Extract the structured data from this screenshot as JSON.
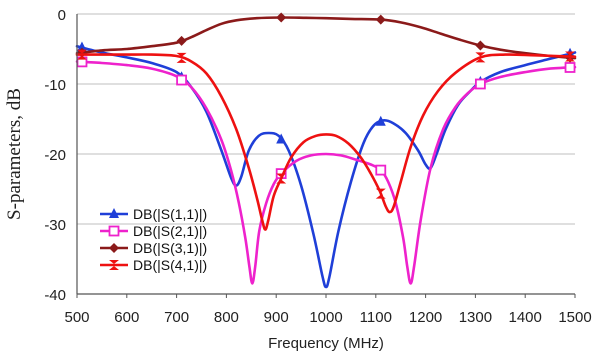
{
  "chart_data": {
    "type": "line",
    "title": "",
    "xlabel": "Frequency (MHz)",
    "ylabel": "S-parameters, dB",
    "xlim": [
      500,
      1500
    ],
    "ylim": [
      -40,
      0
    ],
    "x_ticks": [
      500,
      600,
      700,
      800,
      900,
      1000,
      1100,
      1200,
      1300,
      1400,
      1500
    ],
    "y_ticks": [
      0,
      -10,
      -20,
      -30,
      -40
    ],
    "grid": "horizontal",
    "legend_position": "bottom-left",
    "series": [
      {
        "name": "DB(|S(1,1)|)",
        "color": "#1f3fd8",
        "marker": "triangle",
        "marker_x": [
          510,
          710,
          910,
          1110,
          1310,
          1490
        ],
        "points": [
          [
            500,
            -4.6
          ],
          [
            550,
            -5.5
          ],
          [
            600,
            -6.2
          ],
          [
            650,
            -7.0
          ],
          [
            700,
            -8.3
          ],
          [
            730,
            -10.5
          ],
          [
            760,
            -14.0
          ],
          [
            790,
            -19.5
          ],
          [
            810,
            -23.5
          ],
          [
            820,
            -24.5
          ],
          [
            830,
            -23.2
          ],
          [
            845,
            -19.5
          ],
          [
            865,
            -17.4
          ],
          [
            885,
            -17.0
          ],
          [
            905,
            -17.4
          ],
          [
            925,
            -19.5
          ],
          [
            950,
            -24.5
          ],
          [
            975,
            -31.5
          ],
          [
            993,
            -37.5
          ],
          [
            1000,
            -39.0
          ],
          [
            1007,
            -37.5
          ],
          [
            1025,
            -31.0
          ],
          [
            1050,
            -24.0
          ],
          [
            1075,
            -18.5
          ],
          [
            1095,
            -16.0
          ],
          [
            1115,
            -15.2
          ],
          [
            1135,
            -15.6
          ],
          [
            1160,
            -17.0
          ],
          [
            1185,
            -19.5
          ],
          [
            1200,
            -21.5
          ],
          [
            1210,
            -22.0
          ],
          [
            1222,
            -20.0
          ],
          [
            1240,
            -16.5
          ],
          [
            1265,
            -13.0
          ],
          [
            1290,
            -11.0
          ],
          [
            1310,
            -9.7
          ],
          [
            1350,
            -8.3
          ],
          [
            1400,
            -7.3
          ],
          [
            1450,
            -6.4
          ],
          [
            1500,
            -5.5
          ]
        ]
      },
      {
        "name": "DB(|S(2,1)|)",
        "color": "#ee22cc",
        "marker": "square-open",
        "marker_x": [
          510,
          710,
          910,
          1110,
          1310,
          1490
        ],
        "points": [
          [
            500,
            -6.8
          ],
          [
            550,
            -7.0
          ],
          [
            600,
            -7.3
          ],
          [
            650,
            -7.8
          ],
          [
            700,
            -8.9
          ],
          [
            730,
            -10.5
          ],
          [
            760,
            -13.5
          ],
          [
            790,
            -18.0
          ],
          [
            810,
            -22.5
          ],
          [
            825,
            -27.0
          ],
          [
            838,
            -32.0
          ],
          [
            846,
            -36.0
          ],
          [
            852,
            -38.5
          ],
          [
            858,
            -36.0
          ],
          [
            866,
            -31.0
          ],
          [
            880,
            -27.0
          ],
          [
            895,
            -24.3
          ],
          [
            910,
            -22.8
          ],
          [
            940,
            -21.0
          ],
          [
            970,
            -20.2
          ],
          [
            1000,
            -20.0
          ],
          [
            1030,
            -20.2
          ],
          [
            1060,
            -20.8
          ],
          [
            1090,
            -21.5
          ],
          [
            1110,
            -22.3
          ],
          [
            1125,
            -24.0
          ],
          [
            1140,
            -27.0
          ],
          [
            1155,
            -32.0
          ],
          [
            1163,
            -36.0
          ],
          [
            1170,
            -38.5
          ],
          [
            1177,
            -36.0
          ],
          [
            1190,
            -29.5
          ],
          [
            1210,
            -22.0
          ],
          [
            1235,
            -16.5
          ],
          [
            1260,
            -13.3
          ],
          [
            1285,
            -11.3
          ],
          [
            1310,
            -10.0
          ],
          [
            1350,
            -9.0
          ],
          [
            1400,
            -8.3
          ],
          [
            1450,
            -7.8
          ],
          [
            1500,
            -7.6
          ]
        ]
      },
      {
        "name": "DB(|S(3,1)|)",
        "color": "#8b1a1a",
        "marker": "diamond",
        "marker_x": [
          510,
          710,
          910,
          1110,
          1310,
          1490
        ],
        "points": [
          [
            500,
            -5.6
          ],
          [
            550,
            -5.2
          ],
          [
            600,
            -5.0
          ],
          [
            650,
            -4.6
          ],
          [
            700,
            -4.1
          ],
          [
            730,
            -3.3
          ],
          [
            760,
            -2.3
          ],
          [
            790,
            -1.4
          ],
          [
            820,
            -0.9
          ],
          [
            860,
            -0.6
          ],
          [
            910,
            -0.5
          ],
          [
            960,
            -0.55
          ],
          [
            1000,
            -0.6
          ],
          [
            1050,
            -0.7
          ],
          [
            1110,
            -0.8
          ],
          [
            1150,
            -1.2
          ],
          [
            1190,
            -1.9
          ],
          [
            1230,
            -2.8
          ],
          [
            1270,
            -3.7
          ],
          [
            1310,
            -4.5
          ],
          [
            1350,
            -5.1
          ],
          [
            1400,
            -5.6
          ],
          [
            1450,
            -6.0
          ],
          [
            1500,
            -6.3
          ]
        ]
      },
      {
        "name": "DB(|S(4,1)|)",
        "color": "#ee1111",
        "marker": "hourglass",
        "marker_x": [
          510,
          710,
          910,
          1110,
          1310,
          1490
        ],
        "points": [
          [
            500,
            -5.8
          ],
          [
            550,
            -5.8
          ],
          [
            600,
            -5.8
          ],
          [
            650,
            -5.8
          ],
          [
            700,
            -6.0
          ],
          [
            730,
            -6.8
          ],
          [
            760,
            -8.5
          ],
          [
            790,
            -11.8
          ],
          [
            820,
            -16.5
          ],
          [
            845,
            -22.0
          ],
          [
            862,
            -26.5
          ],
          [
            872,
            -29.5
          ],
          [
            878,
            -30.8
          ],
          [
            884,
            -29.5
          ],
          [
            895,
            -26.0
          ],
          [
            910,
            -23.5
          ],
          [
            930,
            -20.5
          ],
          [
            955,
            -18.3
          ],
          [
            980,
            -17.4
          ],
          [
            1000,
            -17.2
          ],
          [
            1020,
            -17.4
          ],
          [
            1045,
            -18.5
          ],
          [
            1070,
            -20.5
          ],
          [
            1090,
            -22.8
          ],
          [
            1108,
            -25.3
          ],
          [
            1120,
            -27.5
          ],
          [
            1128,
            -28.3
          ],
          [
            1136,
            -27.5
          ],
          [
            1150,
            -24.0
          ],
          [
            1170,
            -19.0
          ],
          [
            1195,
            -14.5
          ],
          [
            1225,
            -11.0
          ],
          [
            1260,
            -8.4
          ],
          [
            1310,
            -6.2
          ],
          [
            1360,
            -5.8
          ],
          [
            1420,
            -5.9
          ],
          [
            1500,
            -6.1
          ]
        ]
      }
    ]
  }
}
